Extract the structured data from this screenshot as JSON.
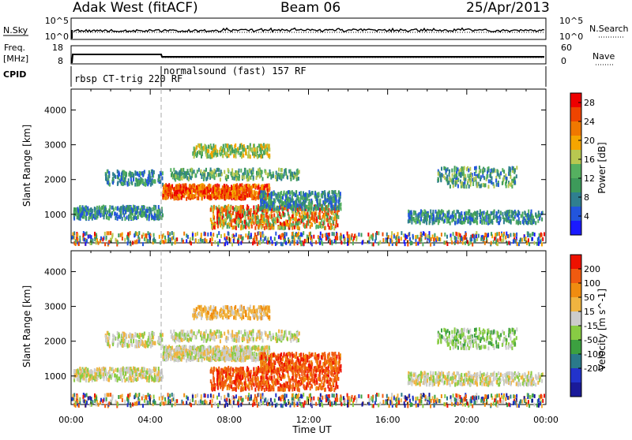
{
  "header": {
    "station": "Adak West (fitACF)",
    "beam": "Beam 06",
    "date": "25/Apr/2013"
  },
  "strip_panels": {
    "nsky_label": "N.Sky",
    "nsky_ticks": [
      "10^5",
      "10^0"
    ],
    "nsearch_label": "N.Search",
    "nsearch_ticks": [
      "10^5",
      "10^0"
    ],
    "freq_label": "Freq.",
    "freq_unit": "[MHz]",
    "freq_ticks": [
      "18",
      "8"
    ],
    "nave_label": "Nave",
    "nave_ticks": [
      "60",
      "0"
    ],
    "cpid_label": "CPID",
    "cpid_segments": [
      {
        "label": "rbsp CT-trig 220 RF",
        "start_hour": 0.0
      },
      {
        "label": "normalsound (fast) 157 RF",
        "start_hour": 4.6
      }
    ]
  },
  "colors": {
    "power_scale": [
      "#1a1aff",
      "#2255dd",
      "#2f7f8f",
      "#3d9a5a",
      "#55b060",
      "#b8c850",
      "#f5a500",
      "#f07800",
      "#ee4400",
      "#ee0000"
    ],
    "velocity_scale": [
      "#1a1a99",
      "#2233cc",
      "#2a7a8a",
      "#3ca040",
      "#88cc44",
      "#cccccc",
      "#f0b440",
      "#f08c10",
      "#f05a10",
      "#ee1100"
    ]
  },
  "chart_data": [
    {
      "type": "heatmap",
      "name": "power",
      "xlabel": "Time UT",
      "ylabel": "Slant Range [km]",
      "xlim": [
        0,
        24
      ],
      "ylim": [
        180,
        4600
      ],
      "x_ticks": [
        "00:00",
        "04:00",
        "08:00",
        "12:00",
        "16:00",
        "20:00",
        "00:00"
      ],
      "y_ticks": [
        1000,
        2000,
        3000,
        4000
      ],
      "colorbar_label": "Power [dB]",
      "colorbar_ticks": [
        4,
        8,
        12,
        16,
        20,
        24,
        28
      ],
      "colorbar_range": [
        0,
        30
      ]
    },
    {
      "type": "heatmap",
      "name": "velocity",
      "xlabel": "Time UT",
      "ylabel": "Slant Range [km]",
      "xlim": [
        0,
        24
      ],
      "ylim": [
        180,
        4600
      ],
      "x_ticks": [
        "00:00",
        "04:00",
        "08:00",
        "12:00",
        "16:00",
        "20:00",
        "00:00"
      ],
      "y_ticks": [
        1000,
        2000,
        3000,
        4000
      ],
      "colorbar_label": "Velocity [m s^-1]",
      "colorbar_ticks": [
        200,
        100,
        50,
        15,
        -15,
        -50,
        -100,
        -200
      ]
    }
  ]
}
